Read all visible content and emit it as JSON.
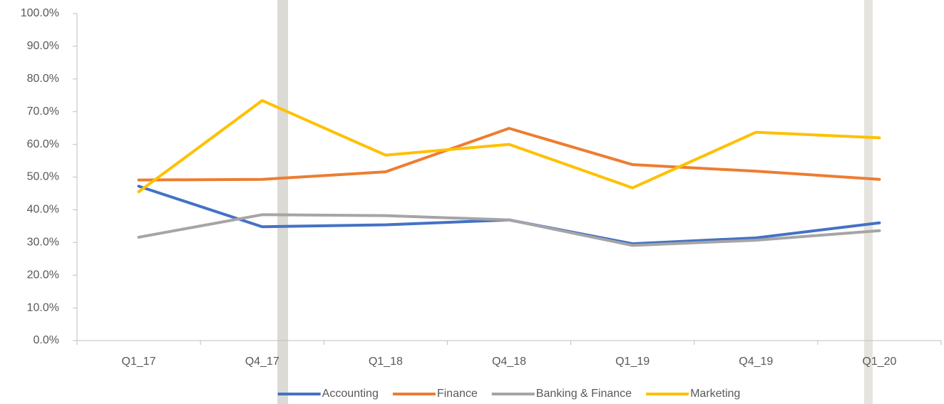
{
  "chart_data": {
    "type": "line",
    "categories": [
      "Q1_17",
      "Q4_17",
      "Q1_18",
      "Q4_18",
      "Q1_19",
      "Q4_19",
      "Q1_20"
    ],
    "series": [
      {
        "name": "Accounting",
        "color": "#4472c4",
        "values": [
          47.2,
          34.8,
          35.4,
          36.9,
          29.6,
          31.4,
          36.0
        ]
      },
      {
        "name": "Finance",
        "color": "#ed7d31",
        "values": [
          49.1,
          49.3,
          51.6,
          64.9,
          53.8,
          51.8,
          49.3
        ]
      },
      {
        "name": "Banking & Finance",
        "color": "#a5a5a5",
        "values": [
          31.6,
          38.5,
          38.2,
          36.9,
          29.1,
          30.7,
          33.6
        ]
      },
      {
        "name": "Marketing",
        "color": "#ffc000",
        "values": [
          45.5,
          73.4,
          56.7,
          60.0,
          46.7,
          63.7,
          62.0
        ]
      }
    ],
    "ylim": [
      0,
      100
    ],
    "yticks": [
      {
        "value": 0,
        "label": "0.0%"
      },
      {
        "value": 10,
        "label": "10.0%"
      },
      {
        "value": 20,
        "label": "20.0%"
      },
      {
        "value": 30,
        "label": "30.0%"
      },
      {
        "value": 40,
        "label": "40.0%"
      },
      {
        "value": 50,
        "label": "50.0%"
      },
      {
        "value": 60,
        "label": "60.0%"
      },
      {
        "value": 70,
        "label": "70.0%"
      },
      {
        "value": 80,
        "label": "80.0%"
      },
      {
        "value": 90,
        "label": "90.0%"
      },
      {
        "value": 100,
        "label": "100.0%"
      }
    ],
    "grid": false,
    "legend": "bottom"
  }
}
